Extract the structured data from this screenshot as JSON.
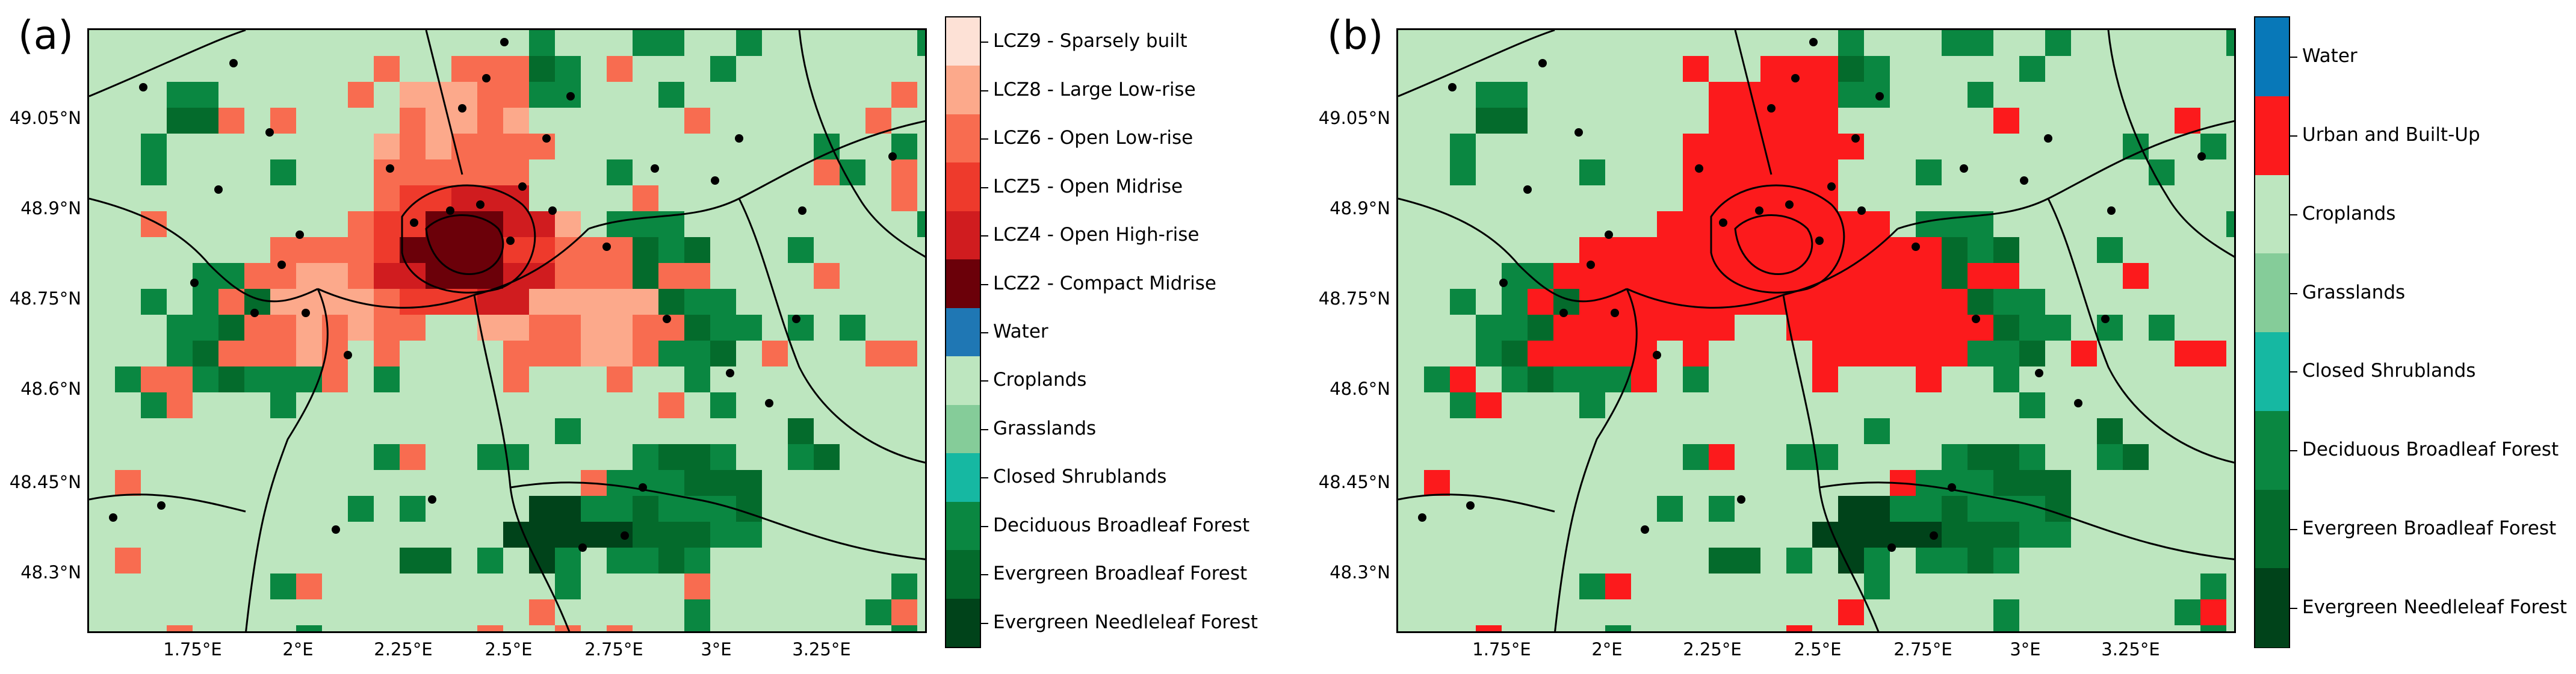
{
  "panel_a": {
    "label": "(a)",
    "y_ticks": [
      "49.05°N",
      "48.9°N",
      "48.75°N",
      "48.6°N",
      "48.45°N",
      "48.3°N"
    ],
    "x_ticks": [
      "1.75°E",
      "2°E",
      "2.25°E",
      "2.5°E",
      "2.75°E",
      "3°E",
      "3.25°E"
    ],
    "legend": [
      {
        "label": "LCZ9 - Sparsely built",
        "color": "#fde1d6"
      },
      {
        "label": "LCZ8 - Large Low-rise",
        "color": "#fca98b"
      },
      {
        "label": "LCZ6 - Open Low-rise",
        "color": "#f86c50"
      },
      {
        "label": "LCZ5 - Open Midrise",
        "color": "#ee3a2c"
      },
      {
        "label": "LCZ4 - Open High-rise",
        "color": "#d01c1f"
      },
      {
        "label": "LCZ2 - Compact Midrise",
        "color": "#6b0009"
      },
      {
        "label": "Water",
        "color": "#1f77b4"
      },
      {
        "label": "Croplands",
        "color": "#bde6bf"
      },
      {
        "label": "Grasslands",
        "color": "#85cc99"
      },
      {
        "label": "Closed Shrublands",
        "color": "#16b8a2"
      },
      {
        "label": "Deciduous Broadleaf Forest",
        "color": "#0a8741"
      },
      {
        "label": "Evergreen Broadleaf Forest",
        "color": "#046b2c"
      },
      {
        "label": "Evergreen Needleleaf Forest",
        "color": "#00431a"
      }
    ]
  },
  "panel_b": {
    "label": "(b)",
    "y_ticks": [
      "49.05°N",
      "48.9°N",
      "48.75°N",
      "48.6°N",
      "48.45°N",
      "48.3°N"
    ],
    "x_ticks": [
      "1.75°E",
      "2°E",
      "2.25°E",
      "2.5°E",
      "2.75°E",
      "3°E",
      "3.25°E"
    ],
    "legend": [
      {
        "label": "Water",
        "color": "#0878b8"
      },
      {
        "label": "Urban and Built-Up",
        "color": "#fc1a1c"
      },
      {
        "label": "Croplands",
        "color": "#bde6bf"
      },
      {
        "label": "Grasslands",
        "color": "#85cc99"
      },
      {
        "label": "Closed Shrublands",
        "color": "#16b8a2"
      },
      {
        "label": "Deciduous Broadleaf Forest",
        "color": "#0a8741"
      },
      {
        "label": "Evergreen Broadleaf Forest",
        "color": "#046b2c"
      },
      {
        "label": "Evergreen Needleleaf Forest",
        "color": "#00431a"
      }
    ]
  }
}
